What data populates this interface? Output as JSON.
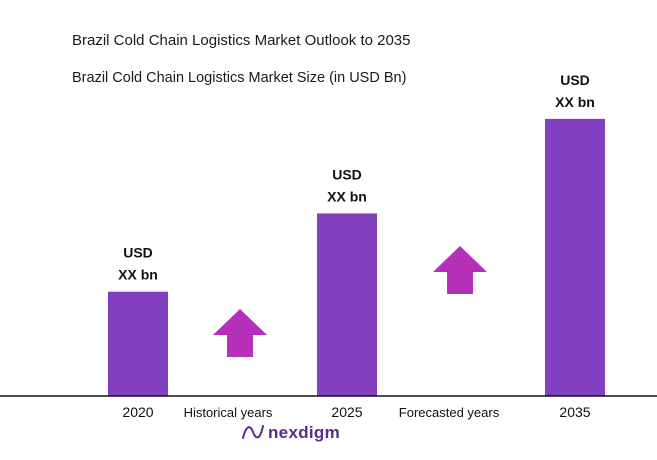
{
  "title": "Brazil Cold Chain Logistics Market Outlook to 2035",
  "subtitle": "Brazil Cold Chain Logistics Market Size (in USD Bn)",
  "brand": "nexdigm",
  "colors": {
    "bar": "#8040c0",
    "arrow": "#b52fb8",
    "axis": "#111111",
    "brand": "#5b2b8c"
  },
  "chart_data": {
    "type": "bar",
    "categories": [
      "2020",
      "2025",
      "2035"
    ],
    "values": [
      32,
      56,
      85
    ],
    "value_labels": [
      [
        "USD",
        "XX bn"
      ],
      [
        "USD",
        "XX bn"
      ],
      [
        "USD",
        "XX bn"
      ]
    ],
    "period_labels": [
      "Historical years",
      "Forecasted years"
    ],
    "ylim": [
      0,
      100
    ],
    "grid": false,
    "legend": "none"
  }
}
